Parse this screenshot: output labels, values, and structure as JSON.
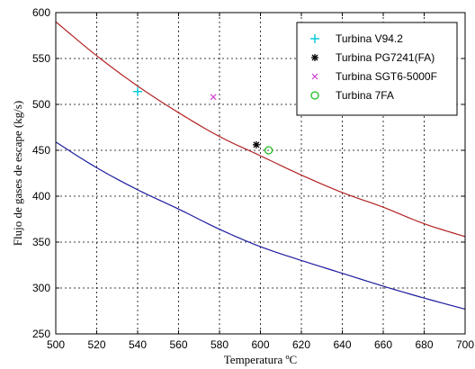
{
  "chart_data": {
    "type": "line",
    "xlabel": "Temperatura ºC",
    "ylabel": "Flujo de gases de escape (kg/s)",
    "xlim": [
      500,
      700
    ],
    "ylim": [
      250,
      600
    ],
    "xticks": [
      500,
      520,
      540,
      560,
      580,
      600,
      620,
      640,
      660,
      680,
      700
    ],
    "yticks": [
      250,
      300,
      350,
      400,
      450,
      500,
      550,
      600
    ],
    "grid": true,
    "legend": {
      "placement": "top-right",
      "entries": [
        "Turbina V94.2",
        "Turbina PG7241(FA)",
        "Turbina SGT6-5000F",
        "Turbina 7FA"
      ]
    },
    "series": [
      {
        "color": "#b22222",
        "x": [
          500,
          520,
          540,
          560,
          580,
          600,
          620,
          640,
          660,
          680,
          700
        ],
        "values": [
          590,
          553,
          520,
          491,
          465,
          444,
          423,
          404,
          388,
          370,
          356
        ]
      },
      {
        "color": "#1c1c9e",
        "x": [
          500,
          520,
          540,
          560,
          580,
          600,
          620,
          640,
          660,
          680,
          700
        ],
        "values": [
          459,
          431,
          407,
          386,
          364,
          345,
          330,
          316,
          302,
          289,
          277
        ]
      }
    ],
    "points": [
      {
        "name": "Turbina V94.2",
        "x": 540,
        "y": 514,
        "color": "#00c8d8",
        "marker": "plus"
      },
      {
        "name": "Turbina PG7241(FA)",
        "x": 598,
        "y": 456,
        "color": "#000000",
        "marker": "star"
      },
      {
        "name": "Turbina SGT6-5000F",
        "x": 577,
        "y": 508,
        "color": "#d040d0",
        "marker": "x"
      },
      {
        "name": "Turbina 7FA",
        "x": 604,
        "y": 450,
        "color": "#1fbf1f",
        "marker": "circle"
      }
    ]
  }
}
